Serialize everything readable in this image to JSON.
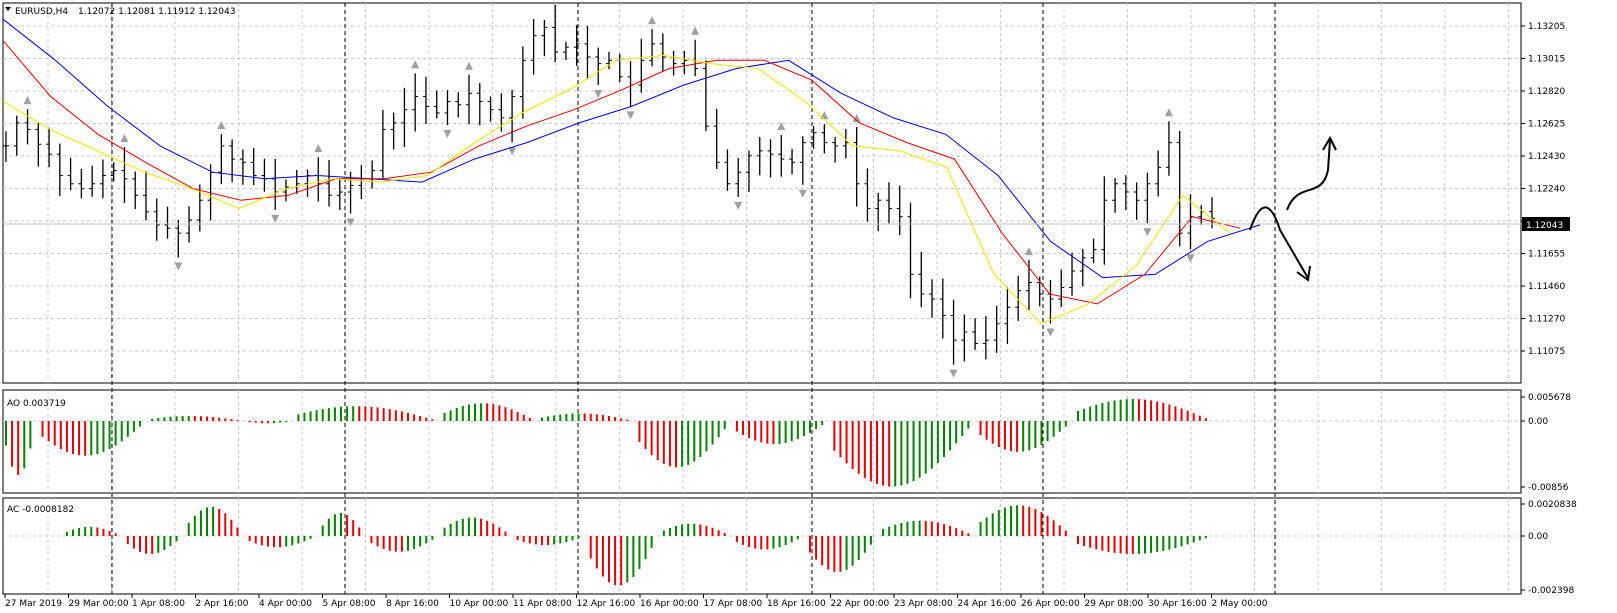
{
  "header": {
    "symbol_label": "EURUSD,H4",
    "ohlc_label": "1.12072 1.12081 1.11912 1.12043"
  },
  "price_axis": {
    "ticks": [
      "1.13205",
      "1.13015",
      "1.12820",
      "1.12625",
      "1.12430",
      "1.12240",
      "1.11850",
      "1.11655",
      "1.11460",
      "1.11270",
      "1.11075"
    ],
    "current_price_label": "1.12043"
  },
  "time_axis": {
    "labels": [
      "27 Mar 2019",
      "29 Mar 00:00",
      "1 Apr 08:00",
      "2 Apr 16:00",
      "4 Apr 00:00",
      "5 Apr 08:00",
      "8 Apr 16:00",
      "10 Apr 00:00",
      "11 Apr 08:00",
      "12 Apr 16:00",
      "16 Apr 00:00",
      "17 Apr 08:00",
      "18 Apr 16:00",
      "22 Apr 00:00",
      "23 Apr 08:00",
      "24 Apr 16:00",
      "26 Apr 00:00",
      "29 Apr 08:00",
      "30 Apr 16:00",
      "2 May 00:00"
    ]
  },
  "ao_panel": {
    "label": "AO 0.003719",
    "ticks": [
      "0.005678",
      "0.00",
      "-0.00856"
    ]
  },
  "ac_panel": {
    "label": "AC -0.0008182",
    "ticks": [
      "0.0020838",
      "0.00",
      "-0.002398"
    ]
  },
  "colors": {
    "bars": "#000000",
    "ma_fast": "#e8e800",
    "ma_mid": "#e00000",
    "ma_slow": "#0000e0",
    "osc_up": "#008000",
    "osc_down": "#e00000",
    "fractal": "#a0a0a0"
  },
  "chart_data": [
    {
      "type": "ohlc",
      "symbol": "EURUSD",
      "timeframe": "H4",
      "ylim": [
        1.1107,
        1.1333
      ],
      "last": {
        "open": 1.12072,
        "high": 1.12081,
        "low": 1.11912,
        "close": 1.12043
      },
      "approx_close_series": [
        1.1248,
        1.1262,
        1.1258,
        1.1249,
        1.1243,
        1.123,
        1.1225,
        1.1222,
        1.1225,
        1.123,
        1.1233,
        1.1228,
        1.1218,
        1.1208,
        1.12,
        1.1198,
        1.1195,
        1.1203,
        1.1215,
        1.1232,
        1.1248,
        1.124,
        1.1238,
        1.123,
        1.1228,
        1.122,
        1.1223,
        1.1225,
        1.123,
        1.1225,
        1.1218,
        1.122,
        1.1224,
        1.1228,
        1.1233,
        1.1258,
        1.1262,
        1.127,
        1.1278,
        1.1272,
        1.1268,
        1.1275,
        1.1273,
        1.128,
        1.1275,
        1.127,
        1.1265,
        1.1278,
        1.13,
        1.1315,
        1.132,
        1.1305,
        1.1308,
        1.131,
        1.1302,
        1.1298,
        1.13,
        1.129,
        1.1285,
        1.13,
        1.131,
        1.1302,
        1.1298,
        1.13,
        1.1295,
        1.126,
        1.1238,
        1.1225,
        1.1232,
        1.1242,
        1.1245,
        1.1243,
        1.124,
        1.1238,
        1.125,
        1.1256,
        1.125,
        1.1248,
        1.125,
        1.1225,
        1.121,
        1.1215,
        1.121,
        1.1205,
        1.117,
        1.1158,
        1.1155,
        1.1145,
        1.113,
        1.1135,
        1.1128,
        1.113,
        1.114,
        1.115,
        1.116,
        1.1165,
        1.1158,
        1.1155,
        1.1162,
        1.1172,
        1.118,
        1.1185,
        1.1215,
        1.1225,
        1.122,
        1.1215,
        1.1225,
        1.1235,
        1.125,
        1.1195,
        1.1205,
        1.1208,
        1.1204
      ],
      "ma_fast": {
        "color": "yellow",
        "values": [
          1.1275,
          1.1258,
          1.1245,
          1.1232,
          1.1222,
          1.121,
          1.1222,
          1.1228,
          1.1226,
          1.123,
          1.125,
          1.1268,
          1.1282,
          1.13,
          1.1303,
          1.1298,
          1.1295,
          1.1275,
          1.1248,
          1.1245,
          1.1235,
          1.117,
          1.114,
          1.1152,
          1.1175,
          1.1218,
          1.1195
        ]
      },
      "ma_mid": {
        "color": "red",
        "values": [
          1.1312,
          1.1278,
          1.1255,
          1.1238,
          1.1222,
          1.1215,
          1.1218,
          1.1228,
          1.1228,
          1.1232,
          1.1248,
          1.126,
          1.127,
          1.1282,
          1.1295,
          1.13,
          1.13,
          1.1288,
          1.1262,
          1.125,
          1.124,
          1.1195,
          1.1158,
          1.1152,
          1.117,
          1.1205,
          1.1198
        ]
      },
      "ma_slow": {
        "color": "blue",
        "values": [
          1.1325,
          1.13,
          1.1272,
          1.1248,
          1.1232,
          1.1228,
          1.123,
          1.1228,
          1.1226,
          1.124,
          1.125,
          1.1262,
          1.1272,
          1.1285,
          1.1295,
          1.13,
          1.128,
          1.1265,
          1.1255,
          1.123,
          1.119,
          1.1168,
          1.117,
          1.119,
          1.12
        ]
      }
    },
    {
      "type": "bar",
      "name": "AO",
      "ylim": [
        -0.00856,
        0.005678
      ],
      "segments": [
        [
          0,
          6,
          -0.007
        ],
        [
          6,
          24,
          -0.0045
        ],
        [
          24,
          40,
          0.0012
        ],
        [
          40,
          48,
          -0.0003
        ],
        [
          48,
          72,
          0.0035
        ],
        [
          72,
          88,
          0.0042
        ],
        [
          88,
          104,
          0.0018
        ],
        [
          104,
          120,
          -0.006
        ],
        [
          120,
          136,
          -0.003
        ],
        [
          136,
          160,
          -0.0085
        ],
        [
          160,
          176,
          -0.004
        ],
        [
          176,
          199,
          0.0052
        ]
      ]
    },
    {
      "type": "bar",
      "name": "AC",
      "ylim": [
        -0.002398,
        0.0020838
      ],
      "segments": [
        [
          0,
          10,
          0.0
        ],
        [
          10,
          20,
          0.0006
        ],
        [
          20,
          30,
          -0.0008
        ],
        [
          30,
          40,
          0.0019
        ],
        [
          40,
          52,
          -0.0005
        ],
        [
          52,
          60,
          0.0015
        ],
        [
          60,
          72,
          -0.0007
        ],
        [
          72,
          84,
          0.0012
        ],
        [
          84,
          96,
          -0.0004
        ],
        [
          96,
          108,
          -0.0022
        ],
        [
          108,
          120,
          0.0008
        ],
        [
          120,
          132,
          -0.0006
        ],
        [
          132,
          144,
          -0.0016
        ],
        [
          144,
          160,
          0.001
        ],
        [
          160,
          176,
          0.002
        ],
        [
          176,
          199,
          -0.0008
        ]
      ]
    }
  ]
}
